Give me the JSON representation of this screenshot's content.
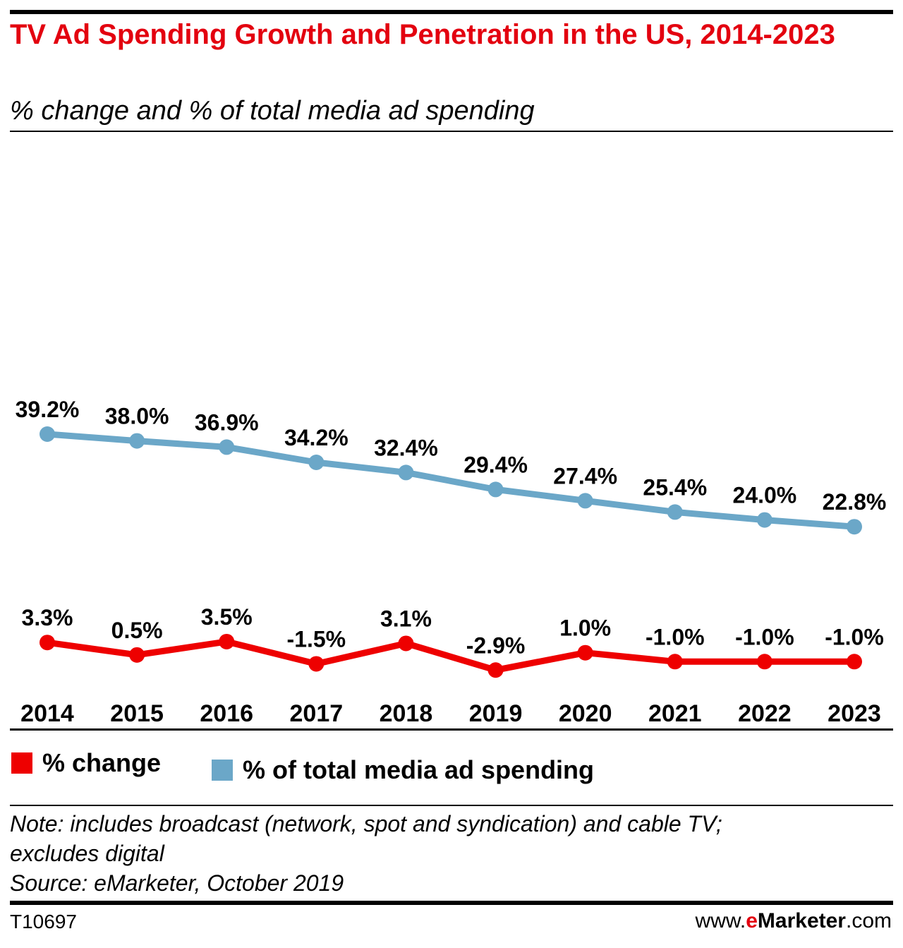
{
  "title": "TV Ad Spending Growth and Penetration in the US, 2014-2023",
  "subtitle": "% change and % of total media ad spending",
  "legend": [
    {
      "label": "% change",
      "color": "#ee0000"
    },
    {
      "label": "% of total media ad spending",
      "color": "#6ba7c8"
    }
  ],
  "note_line1": "Note: includes broadcast (network, spot and syndication) and cable TV;",
  "note_line2": "excludes digital",
  "source": "Source: eMarketer, October 2019",
  "chart_id": "T10697",
  "brand": {
    "prefix": "www.",
    "e": "e",
    "name": "Marketer",
    "suffix": ".com"
  },
  "chart_data": {
    "type": "line",
    "title": "TV Ad Spending Growth and Penetration in the US, 2014-2023",
    "subtitle": "% change and % of total media ad spending",
    "categories": [
      "2014",
      "2015",
      "2016",
      "2017",
      "2018",
      "2019",
      "2020",
      "2021",
      "2022",
      "2023"
    ],
    "series": [
      {
        "name": "% of total media ad spending",
        "color": "#6ba7c8",
        "values": [
          39.2,
          38.0,
          36.9,
          34.2,
          32.4,
          29.4,
          27.4,
          25.4,
          24.0,
          22.8
        ],
        "labels": [
          "39.2%",
          "38.0%",
          "36.9%",
          "34.2%",
          "32.4%",
          "29.4%",
          "27.4%",
          "25.4%",
          "24.0%",
          "22.8%"
        ]
      },
      {
        "name": "% change",
        "color": "#ee0000",
        "values": [
          3.3,
          0.5,
          3.5,
          -1.5,
          3.1,
          -2.9,
          1.0,
          -1.0,
          -1.0,
          -1.0
        ],
        "labels": [
          "3.3%",
          "0.5%",
          "3.5%",
          "-1.5%",
          "3.1%",
          "-2.9%",
          "1.0%",
          "-1.0%",
          "-1.0%",
          "-1.0%"
        ]
      }
    ],
    "xlabel": "",
    "ylabel": "",
    "grid": false,
    "legend_position": "bottom-left"
  }
}
